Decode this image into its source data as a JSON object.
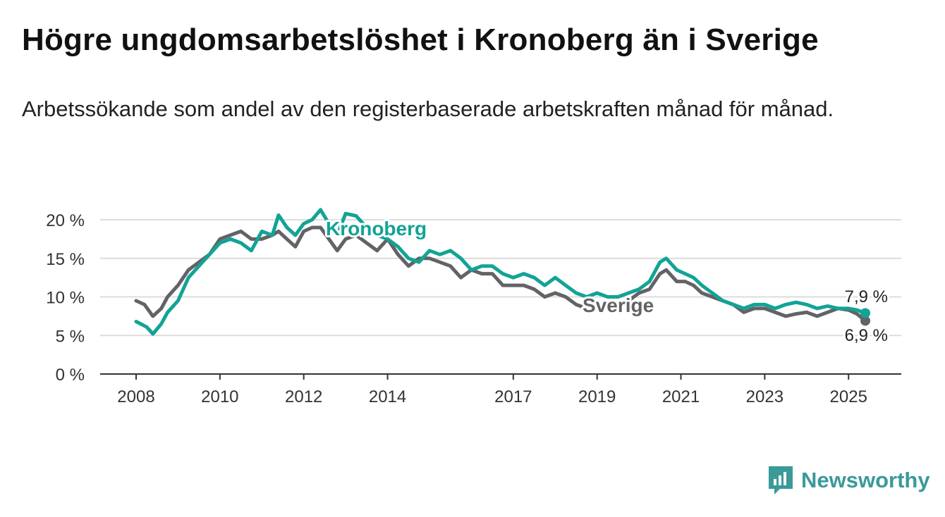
{
  "title": "Högre ungdomsarbetslöshet i Kronoberg än i Sverige",
  "subtitle": "Arbetssökande som andel av den registerbaserade arbetskraften månad för månad.",
  "logo": {
    "text": "Newsworthy",
    "icon": "bar-chart-speech-bubble-icon"
  },
  "chart_data": {
    "type": "line",
    "title": "Högre ungdomsarbetslöshet i Kronoberg än i Sverige",
    "subtitle": "Arbetssökande som andel av den registerbaserade arbetskraften månad för månad.",
    "xlabel": "",
    "ylabel": "",
    "xlim": [
      2008.0,
      2025.4
    ],
    "ylim": [
      0,
      20
    ],
    "x_ticks": [
      2008,
      2010,
      2012,
      2014,
      2017,
      2019,
      2021,
      2023,
      2025
    ],
    "y_ticks": [
      0,
      5,
      10,
      15,
      20
    ],
    "y_tick_labels": [
      "0 %",
      "5 %",
      "10 %",
      "15 %",
      "20 %"
    ],
    "grid": true,
    "colors": {
      "Kronoberg": "#12a396",
      "Sverige": "#636266"
    },
    "series": [
      {
        "name": "Kronoberg",
        "label_text": "Kronoberg",
        "end_label": "7,9 %",
        "points": [
          [
            2008.0,
            6.8
          ],
          [
            2008.25,
            6.1
          ],
          [
            2008.4,
            5.2
          ],
          [
            2008.6,
            6.5
          ],
          [
            2008.75,
            8.0
          ],
          [
            2009.0,
            9.5
          ],
          [
            2009.25,
            12.5
          ],
          [
            2009.5,
            14.0
          ],
          [
            2009.75,
            15.5
          ],
          [
            2010.0,
            17.0
          ],
          [
            2010.25,
            17.5
          ],
          [
            2010.5,
            17.0
          ],
          [
            2010.75,
            16.0
          ],
          [
            2011.0,
            18.5
          ],
          [
            2011.25,
            18.0
          ],
          [
            2011.4,
            20.6
          ],
          [
            2011.6,
            19.0
          ],
          [
            2011.8,
            18.0
          ],
          [
            2012.0,
            19.5
          ],
          [
            2012.2,
            20.0
          ],
          [
            2012.4,
            21.3
          ],
          [
            2012.6,
            19.5
          ],
          [
            2012.8,
            18.0
          ],
          [
            2013.0,
            20.8
          ],
          [
            2013.25,
            20.5
          ],
          [
            2013.5,
            19.0
          ],
          [
            2013.75,
            18.0
          ],
          [
            2014.0,
            17.5
          ],
          [
            2014.25,
            16.5
          ],
          [
            2014.5,
            15.0
          ],
          [
            2014.75,
            14.5
          ],
          [
            2015.0,
            16.0
          ],
          [
            2015.25,
            15.5
          ],
          [
            2015.5,
            16.0
          ],
          [
            2015.75,
            15.0
          ],
          [
            2016.0,
            13.5
          ],
          [
            2016.25,
            14.0
          ],
          [
            2016.5,
            14.0
          ],
          [
            2016.75,
            13.0
          ],
          [
            2017.0,
            12.5
          ],
          [
            2017.25,
            13.0
          ],
          [
            2017.5,
            12.5
          ],
          [
            2017.75,
            11.5
          ],
          [
            2018.0,
            12.5
          ],
          [
            2018.25,
            11.5
          ],
          [
            2018.5,
            10.5
          ],
          [
            2018.75,
            10.0
          ],
          [
            2019.0,
            10.5
          ],
          [
            2019.25,
            10.0
          ],
          [
            2019.5,
            10.0
          ],
          [
            2019.75,
            10.5
          ],
          [
            2020.0,
            11.0
          ],
          [
            2020.25,
            12.0
          ],
          [
            2020.5,
            14.5
          ],
          [
            2020.65,
            15.0
          ],
          [
            2020.9,
            13.5
          ],
          [
            2021.1,
            13.0
          ],
          [
            2021.3,
            12.5
          ],
          [
            2021.5,
            11.5
          ],
          [
            2021.75,
            10.5
          ],
          [
            2022.0,
            9.5
          ],
          [
            2022.25,
            9.0
          ],
          [
            2022.5,
            8.5
          ],
          [
            2022.75,
            9.0
          ],
          [
            2023.0,
            9.0
          ],
          [
            2023.25,
            8.5
          ],
          [
            2023.5,
            9.0
          ],
          [
            2023.75,
            9.3
          ],
          [
            2024.0,
            9.0
          ],
          [
            2024.25,
            8.5
          ],
          [
            2024.5,
            8.8
          ],
          [
            2024.75,
            8.5
          ],
          [
            2025.0,
            8.5
          ],
          [
            2025.2,
            8.3
          ],
          [
            2025.4,
            7.9
          ]
        ]
      },
      {
        "name": "Sverige",
        "label_text": "Sverige",
        "end_label": "6,9 %",
        "points": [
          [
            2008.0,
            9.5
          ],
          [
            2008.2,
            9.0
          ],
          [
            2008.4,
            7.5
          ],
          [
            2008.6,
            8.5
          ],
          [
            2008.75,
            10.0
          ],
          [
            2009.0,
            11.5
          ],
          [
            2009.25,
            13.5
          ],
          [
            2009.5,
            14.5
          ],
          [
            2009.75,
            15.5
          ],
          [
            2010.0,
            17.5
          ],
          [
            2010.25,
            18.0
          ],
          [
            2010.5,
            18.5
          ],
          [
            2010.75,
            17.5
          ],
          [
            2011.0,
            17.5
          ],
          [
            2011.25,
            18.0
          ],
          [
            2011.4,
            18.5
          ],
          [
            2011.6,
            17.5
          ],
          [
            2011.8,
            16.5
          ],
          [
            2012.0,
            18.5
          ],
          [
            2012.2,
            19.0
          ],
          [
            2012.4,
            19.0
          ],
          [
            2012.6,
            17.5
          ],
          [
            2012.8,
            16.0
          ],
          [
            2013.0,
            17.5
          ],
          [
            2013.25,
            18.0
          ],
          [
            2013.5,
            17.0
          ],
          [
            2013.75,
            16.0
          ],
          [
            2014.0,
            17.5
          ],
          [
            2014.25,
            15.5
          ],
          [
            2014.5,
            14.0
          ],
          [
            2014.75,
            15.0
          ],
          [
            2015.0,
            15.0
          ],
          [
            2015.25,
            14.5
          ],
          [
            2015.5,
            14.0
          ],
          [
            2015.75,
            12.5
          ],
          [
            2016.0,
            13.5
          ],
          [
            2016.25,
            13.0
          ],
          [
            2016.5,
            13.0
          ],
          [
            2016.75,
            11.5
          ],
          [
            2017.0,
            11.5
          ],
          [
            2017.25,
            11.5
          ],
          [
            2017.5,
            11.0
          ],
          [
            2017.75,
            10.0
          ],
          [
            2018.0,
            10.5
          ],
          [
            2018.25,
            10.0
          ],
          [
            2018.5,
            9.0
          ],
          [
            2018.75,
            8.5
          ],
          [
            2019.0,
            9.0
          ],
          [
            2019.25,
            8.5
          ],
          [
            2019.5,
            8.5
          ],
          [
            2019.75,
            9.5
          ],
          [
            2020.0,
            10.5
          ],
          [
            2020.25,
            11.0
          ],
          [
            2020.5,
            13.0
          ],
          [
            2020.65,
            13.5
          ],
          [
            2020.9,
            12.0
          ],
          [
            2021.1,
            12.0
          ],
          [
            2021.3,
            11.5
          ],
          [
            2021.5,
            10.5
          ],
          [
            2021.75,
            10.0
          ],
          [
            2022.0,
            9.5
          ],
          [
            2022.25,
            9.0
          ],
          [
            2022.5,
            8.0
          ],
          [
            2022.75,
            8.5
          ],
          [
            2023.0,
            8.5
          ],
          [
            2023.25,
            8.0
          ],
          [
            2023.5,
            7.5
          ],
          [
            2023.75,
            7.8
          ],
          [
            2024.0,
            8.0
          ],
          [
            2024.25,
            7.5
          ],
          [
            2024.5,
            8.0
          ],
          [
            2024.75,
            8.5
          ],
          [
            2025.0,
            8.3
          ],
          [
            2025.2,
            7.8
          ],
          [
            2025.4,
            6.9
          ]
        ]
      }
    ]
  }
}
